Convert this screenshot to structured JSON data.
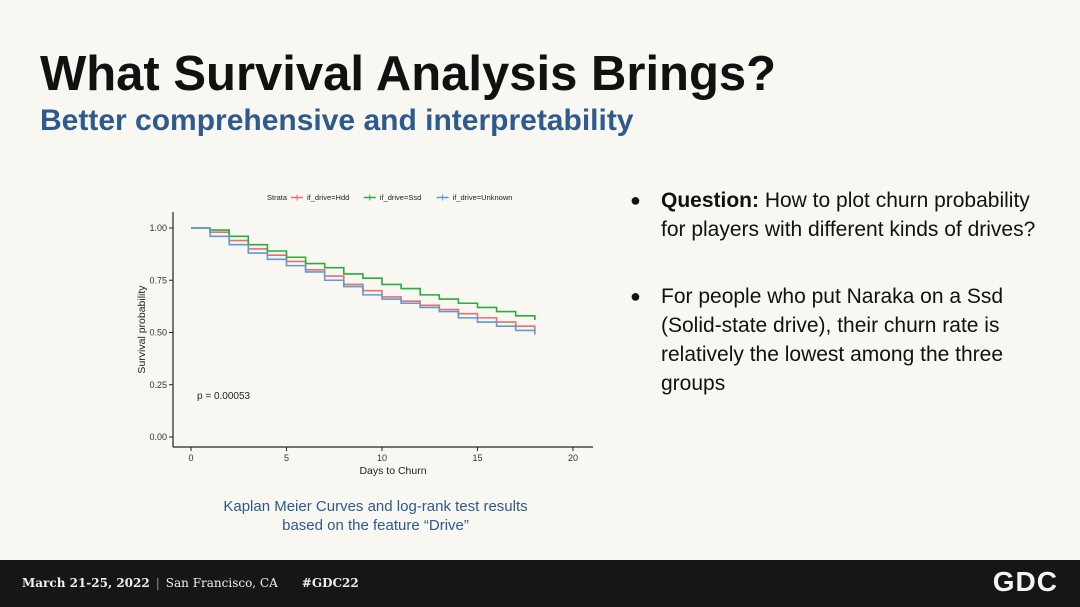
{
  "slide": {
    "title": "What Survival Analysis Brings?",
    "subtitle": "Better comprehensive and interpretability",
    "caption_line1": "Kaplan Meier Curves and log-rank test results",
    "caption_line2": "based on the feature “Drive”"
  },
  "bullets": [
    {
      "lead": "Question:",
      "text": " How to plot churn probability for players with different kinds of drives?"
    },
    {
      "lead": "",
      "text": "For people who put Naraka on a Ssd (Solid-state drive),  their churn rate is relatively the lowest among the three groups"
    }
  ],
  "footer": {
    "date": "March 21-25, 2022",
    "separator": "|",
    "location": "San Francisco, CA",
    "hashtag": "#GDC22",
    "logo": "GDC"
  },
  "colors": {
    "hdd": "#e8706a",
    "ssd": "#27ad3a",
    "unknown": "#5b9bd8",
    "accent": "#2f5a8c"
  },
  "chart_data": {
    "type": "line",
    "step": true,
    "xlabel": "Days to Churn",
    "ylabel": "Survival probability",
    "xlim": [
      0,
      20
    ],
    "ylim": [
      0,
      1
    ],
    "x_ticks": [
      0,
      5,
      10,
      15,
      20
    ],
    "y_ticks": [
      0,
      0.25,
      0.5,
      0.75,
      1.0
    ],
    "y_tick_labels": [
      "0.00",
      "0.25",
      "0.50",
      "0.75",
      "1.00"
    ],
    "legend_title": "Strata",
    "legend_position": "top",
    "annotation": "p = 0.00053",
    "grid": false,
    "series": [
      {
        "name": "if_drive=Hdd",
        "color": "#e8706a",
        "x": [
          0,
          1,
          2,
          3,
          4,
          5,
          6,
          7,
          8,
          9,
          10,
          11,
          12,
          13,
          14,
          15,
          16,
          17,
          18
        ],
        "y": [
          1.0,
          0.98,
          0.94,
          0.9,
          0.87,
          0.84,
          0.8,
          0.77,
          0.73,
          0.7,
          0.67,
          0.65,
          0.63,
          0.61,
          0.59,
          0.57,
          0.55,
          0.53,
          0.51
        ]
      },
      {
        "name": "if_drive=Ssd",
        "color": "#27ad3a",
        "x": [
          0,
          1,
          2,
          3,
          4,
          5,
          6,
          7,
          8,
          9,
          10,
          11,
          12,
          13,
          14,
          15,
          16,
          17,
          18
        ],
        "y": [
          1.0,
          0.99,
          0.96,
          0.92,
          0.89,
          0.86,
          0.83,
          0.81,
          0.78,
          0.76,
          0.73,
          0.71,
          0.68,
          0.66,
          0.64,
          0.62,
          0.6,
          0.58,
          0.56
        ]
      },
      {
        "name": "if_drive=Unknown",
        "color": "#5b9bd8",
        "x": [
          0,
          1,
          2,
          3,
          4,
          5,
          6,
          7,
          8,
          9,
          10,
          11,
          12,
          13,
          14,
          15,
          16,
          17,
          18
        ],
        "y": [
          1.0,
          0.96,
          0.92,
          0.88,
          0.85,
          0.82,
          0.79,
          0.75,
          0.72,
          0.68,
          0.66,
          0.64,
          0.62,
          0.6,
          0.57,
          0.55,
          0.53,
          0.51,
          0.49
        ]
      }
    ]
  }
}
